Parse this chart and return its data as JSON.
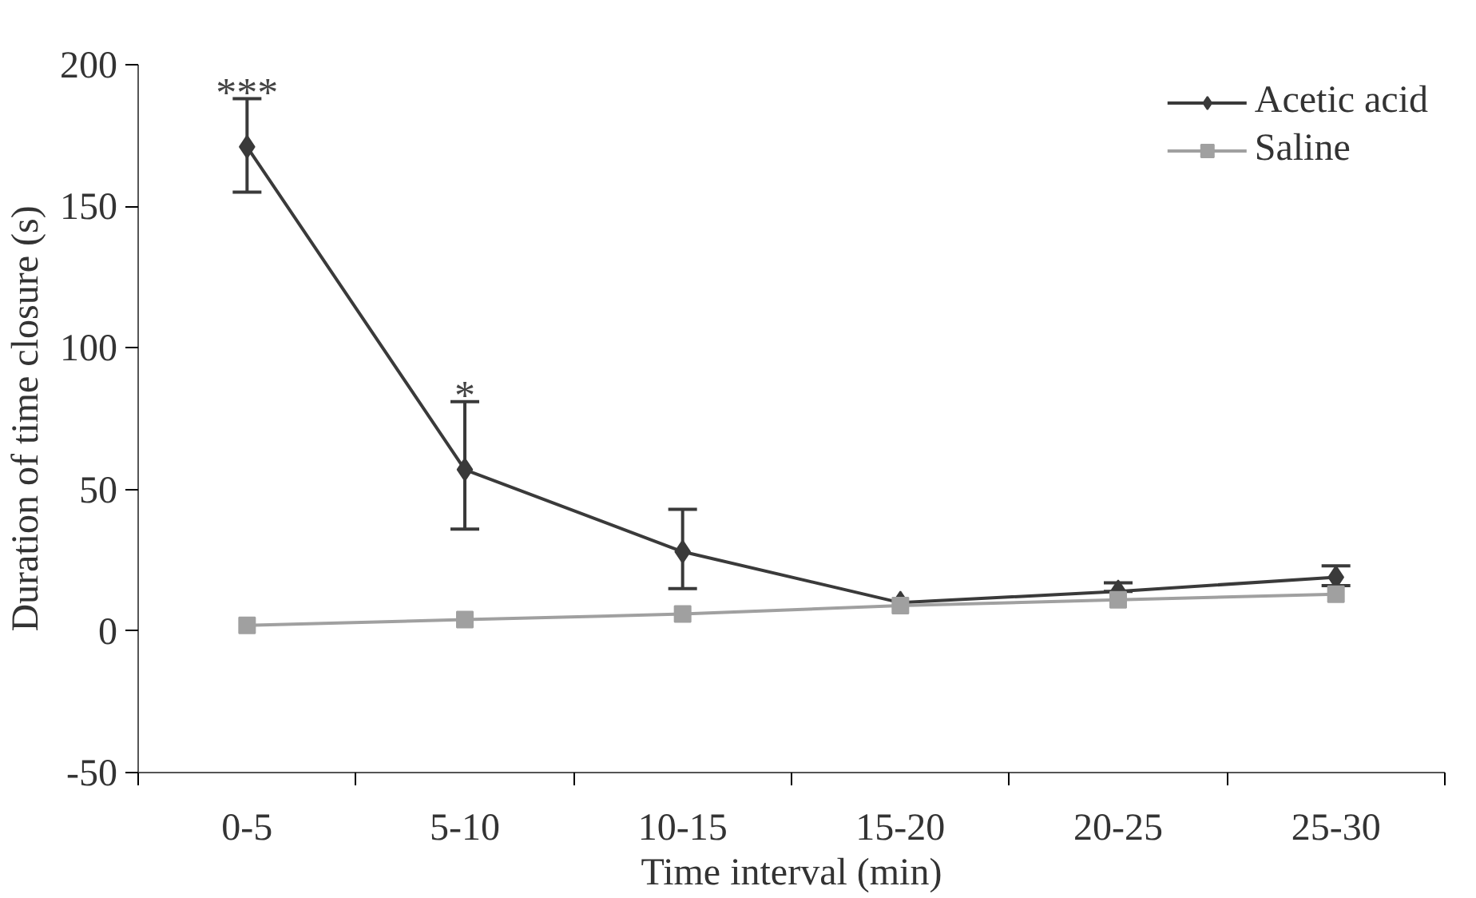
{
  "chart_data": {
    "type": "line",
    "xlabel": "Time interval (min)",
    "ylabel": "Duration of time closure (s)",
    "categories": [
      "0-5",
      "5-10",
      "10-15",
      "15-20",
      "20-25",
      "25-30"
    ],
    "ylim": [
      -50,
      200
    ],
    "yticks": [
      -50,
      0,
      50,
      100,
      150,
      200
    ],
    "grid": false,
    "legend": "top right",
    "series": [
      {
        "name": "Acetic acid",
        "color": "#3a3a3a",
        "marker": "diamond",
        "values": [
          171,
          57,
          28,
          10,
          14,
          19
        ],
        "errors": [
          [
            155,
            188
          ],
          [
            36,
            81
          ],
          [
            15,
            43
          ],
          null,
          [
            14,
            17
          ],
          [
            16,
            23
          ]
        ]
      },
      {
        "name": "Saline",
        "color": "#a0a0a0",
        "marker": "square",
        "values": [
          2,
          4,
          6,
          9,
          11,
          13
        ]
      }
    ],
    "annotations": [
      "***",
      "*"
    ]
  }
}
